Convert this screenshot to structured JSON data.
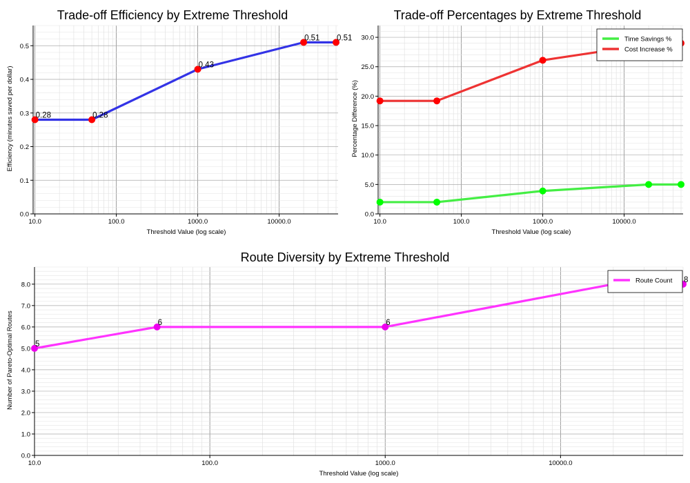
{
  "chart_data": [
    {
      "type": "line",
      "title": "Trade-off Efficiency by Extreme Threshold",
      "xlabel": "Threshold Value (log scale)",
      "ylabel": "Efficiency (minutes saved per dollar)",
      "xscale": "log",
      "xlim": [
        9.5,
        53000
      ],
      "ylim": [
        0,
        0.56
      ],
      "xticks": [
        10,
        100,
        1000,
        10000
      ],
      "xtick_labels": [
        "10.0",
        "100.0",
        "1000.0",
        "10000.0"
      ],
      "yticks": [
        0.0,
        0.1,
        0.2,
        0.3,
        0.4,
        0.5
      ],
      "ytick_labels": [
        "0.0",
        "0.1",
        "0.2",
        "0.3",
        "0.4",
        "0.5"
      ],
      "grid": true,
      "x": [
        10,
        50,
        1000,
        20000,
        50000
      ],
      "series": [
        {
          "values": [
            0.28,
            0.28,
            0.43,
            0.51,
            0.51
          ],
          "labels": [
            "0.28",
            "0.28",
            "0.43",
            "0.51",
            "0.51"
          ],
          "line_color": "#3333e6",
          "marker_color": "#ff0000"
        }
      ]
    },
    {
      "type": "line",
      "title": "Trade-off Percentages by Extreme Threshold",
      "xlabel": "Threshold Value (log scale)",
      "ylabel": "Percentage Difference (%)",
      "xscale": "log",
      "xlim": [
        9.5,
        53000
      ],
      "ylim": [
        0,
        32
      ],
      "xticks": [
        10,
        100,
        1000,
        10000
      ],
      "xtick_labels": [
        "10.0",
        "100.0",
        "1000.0",
        "10000.0"
      ],
      "yticks": [
        0,
        5,
        10,
        15,
        20,
        25,
        30
      ],
      "ytick_labels": [
        "0.0",
        "5.0",
        "10.0",
        "15.0",
        "20.0",
        "25.0",
        "30.0"
      ],
      "grid": true,
      "legend": "top-right",
      "x": [
        10,
        50,
        1000,
        20000,
        50000
      ],
      "series": [
        {
          "name": "Time Savings %",
          "values": [
            2.0,
            2.0,
            3.9,
            5.0,
            5.0
          ],
          "line_color": "#44ee44",
          "marker_color": "#00ff00"
        },
        {
          "name": "Cost Increase %",
          "values": [
            19.2,
            19.2,
            26.1,
            28.8,
            29.0
          ],
          "line_color": "#ee3333",
          "marker_color": "#ff0000"
        }
      ]
    },
    {
      "type": "line",
      "title": "Route Diversity by Extreme Threshold",
      "xlabel": "Threshold Value (log scale)",
      "ylabel": "Number of Pareto-Optimal Routes",
      "xscale": "log",
      "xlim": [
        10,
        50000
      ],
      "ylim": [
        0,
        8.8
      ],
      "xticks": [
        10,
        100,
        1000,
        10000
      ],
      "xtick_labels": [
        "10.0",
        "100.0",
        "1000.0",
        "10000.0"
      ],
      "yticks": [
        0,
        1,
        2,
        3,
        4,
        5,
        6,
        7,
        8
      ],
      "ytick_labels": [
        "0.0",
        "1.0",
        "2.0",
        "3.0",
        "4.0",
        "5.0",
        "6.0",
        "7.0",
        "8.0"
      ],
      "grid": true,
      "legend": "top-right",
      "x": [
        10,
        50,
        1000,
        20000,
        50000
      ],
      "series": [
        {
          "name": "Route Count",
          "values": [
            5,
            6,
            6,
            8,
            8
          ],
          "labels": [
            "5",
            "6",
            "6",
            "8",
            "8"
          ],
          "line_color": "#ff33ff",
          "marker_color": "#ee00ee"
        }
      ]
    }
  ]
}
